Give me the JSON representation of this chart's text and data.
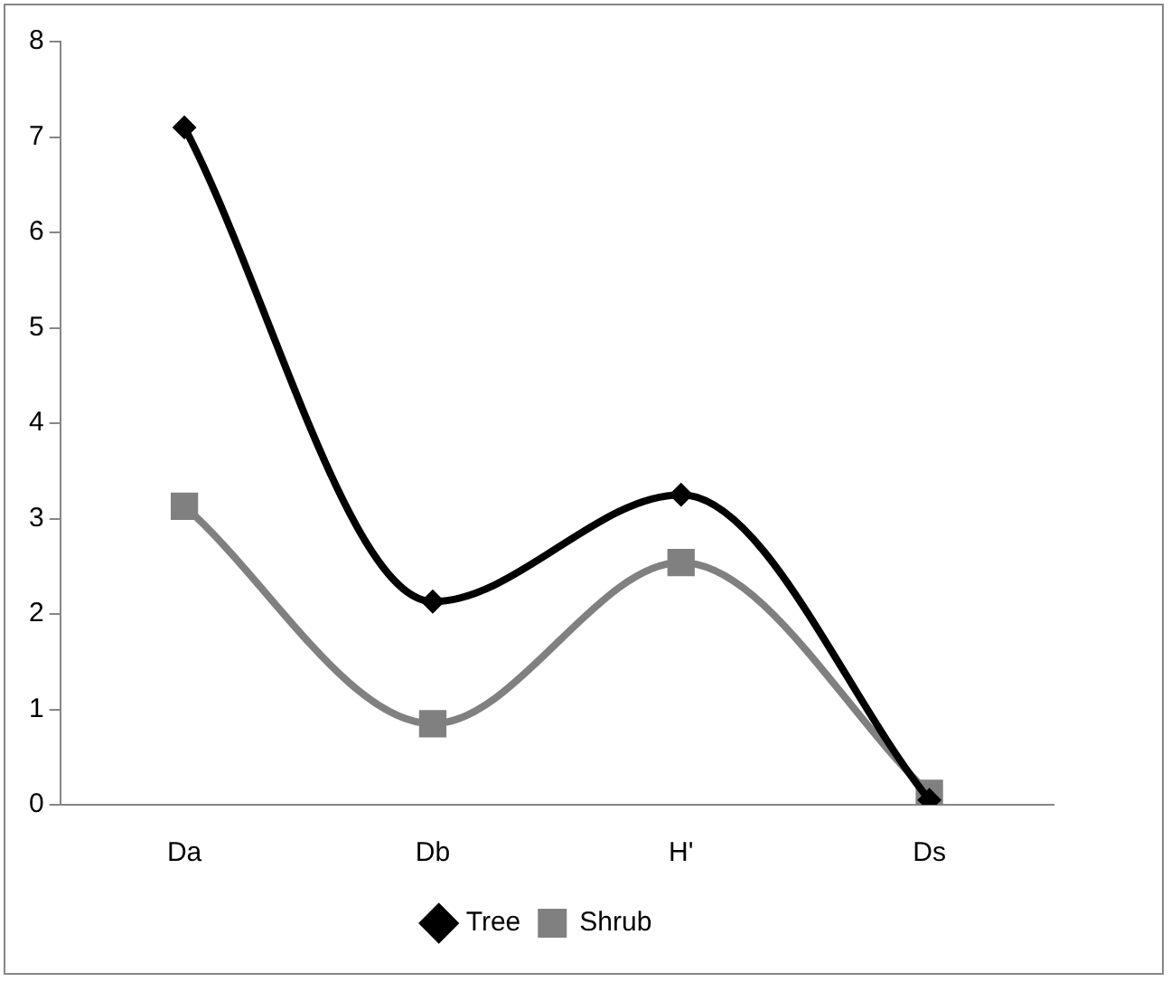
{
  "chart_data": {
    "type": "line",
    "categories": [
      "Da",
      "Db",
      "H'",
      "Ds"
    ],
    "series": [
      {
        "name": "Tree",
        "color": "#000000",
        "marker": "diamond",
        "values": [
          7.1,
          2.13,
          3.25,
          0.05
        ]
      },
      {
        "name": "Shrub",
        "color": "#808080",
        "marker": "square",
        "values": [
          3.13,
          0.85,
          2.54,
          0.12
        ]
      }
    ],
    "ylim": [
      0,
      8
    ],
    "yticks": [
      0,
      1,
      2,
      3,
      4,
      5,
      6,
      7,
      8
    ],
    "grid": false,
    "legend": "bottom"
  }
}
